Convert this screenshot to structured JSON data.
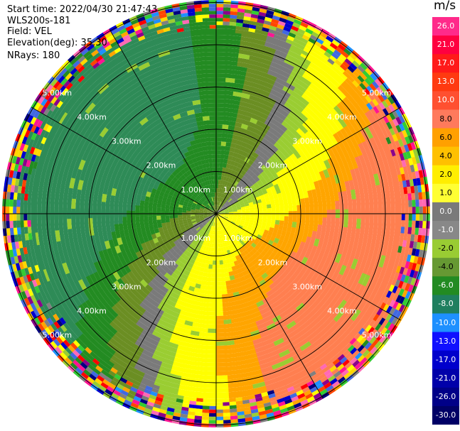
{
  "header": {
    "start_time": "Start time: 2022/04/30 21:47:43",
    "instrument": "WLS200s-181",
    "field": "Field: VEL",
    "elevation": "Elevation(deg): 35.30",
    "nrays": "NRays: 180"
  },
  "colorbar": {
    "unit": "m/s",
    "ticks": [
      "26.0",
      "21.0",
      "17.0",
      "13.0",
      "10.0",
      "8.0",
      "6.0",
      "4.0",
      "2.0",
      "1.0",
      "0.0",
      "-1.0",
      "-2.0",
      "-4.0",
      "-6.0",
      "-8.0",
      "-10.0",
      "-13.0",
      "-17.0",
      "-21.0",
      "-26.0",
      "-30.0"
    ],
    "colors": [
      "#ff2a8a",
      "#ff0040",
      "#ff1a1a",
      "#ff3a10",
      "#ff5030",
      "#ff7a5c",
      "#ffa000",
      "#ffc000",
      "#ffee00",
      "#ffff33",
      "#7a7a7a",
      "#888888",
      "#99cc33",
      "#669933",
      "#228b22",
      "#1f7f5f",
      "#1e90ff",
      "#1010ff",
      "#0000cc",
      "#0000aa",
      "#000088",
      "#000066"
    ],
    "text_colors": [
      "#ffffff",
      "#ffffff",
      "#ffffff",
      "#ffffff",
      "#ffffff",
      "#000000",
      "#000000",
      "#000000",
      "#000000",
      "#000000",
      "#ffffff",
      "#ffffff",
      "#000000",
      "#000000",
      "#ffffff",
      "#ffffff",
      "#ffffff",
      "#ffffff",
      "#ffffff",
      "#ffffff",
      "#ffffff",
      "#ffffff"
    ]
  },
  "range_rings": {
    "labels_upper": [
      "1.00km",
      "2.00km",
      "3.00km",
      "4.00km",
      "5.00km"
    ],
    "labels_lower": [
      "1.00km",
      "2.00km",
      "3.00km",
      "4.00km",
      "5.00km"
    ]
  },
  "field_colors": {
    "dark_green": "#238b22",
    "teal_green": "#2e8b57",
    "olive": "#6b8e23",
    "light_green": "#9acd32",
    "grey": "#7a7a7a",
    "yellow": "#ffff00",
    "orange": "#ffa500",
    "salmon": "#ff7f50",
    "noise": [
      "#ff1493",
      "#ff0000",
      "#0000cd",
      "#ffff00",
      "#9acd32",
      "#ffa500",
      "#1e90ff",
      "#228b22",
      "#ff69b4",
      "#8b008b",
      "#000080",
      "#ff4500",
      "#808080",
      "#32cd32",
      "#ffd700",
      "#4169e1"
    ]
  }
}
